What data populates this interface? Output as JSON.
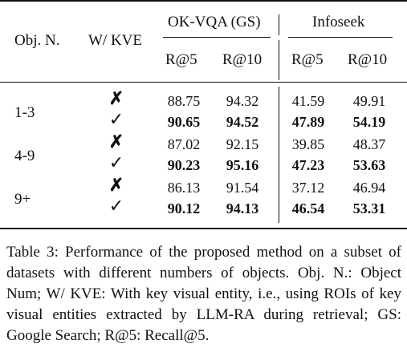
{
  "table": {
    "headers": {
      "obj_n": "Obj. N.",
      "w_kve": "W/ KVE",
      "okvqa": "OK-VQA (GS)",
      "infoseek": "Infoseek",
      "r5_a": "R@5",
      "r10_a": "R@10",
      "r5_b": "R@5",
      "r10_b": "R@10"
    },
    "groups": [
      {
        "label": "1-3",
        "rows": [
          {
            "kve": "✗",
            "okvqa_r5": "88.75",
            "okvqa_r10": "94.32",
            "info_r5": "41.59",
            "info_r10": "49.91"
          },
          {
            "kve": "✓",
            "okvqa_r5": "90.65",
            "okvqa_r10": "94.52",
            "info_r5": "47.89",
            "info_r10": "54.19"
          }
        ]
      },
      {
        "label": "4-9",
        "rows": [
          {
            "kve": "✗",
            "okvqa_r5": "87.02",
            "okvqa_r10": "92.15",
            "info_r5": "39.85",
            "info_r10": "48.37"
          },
          {
            "kve": "✓",
            "okvqa_r5": "90.23",
            "okvqa_r10": "95.16",
            "info_r5": "47.23",
            "info_r10": "53.63"
          }
        ]
      },
      {
        "label": "9+",
        "rows": [
          {
            "kve": "✗",
            "okvqa_r5": "86.13",
            "okvqa_r10": "91.54",
            "info_r5": "37.12",
            "info_r10": "46.94"
          },
          {
            "kve": "✓",
            "okvqa_r5": "90.12",
            "okvqa_r10": "94.13",
            "info_r5": "46.54",
            "info_r10": "53.31"
          }
        ]
      }
    ]
  },
  "caption": "Table 3: Performance of the proposed method on a subset of datasets with different numbers of objects. Obj. N.: Object Num; W/ KVE: With key visual entity, i.e., using ROIs of key visual entities extracted by LLM-RA during retrieval; GS: Google Search; R@5: Recall@5."
}
